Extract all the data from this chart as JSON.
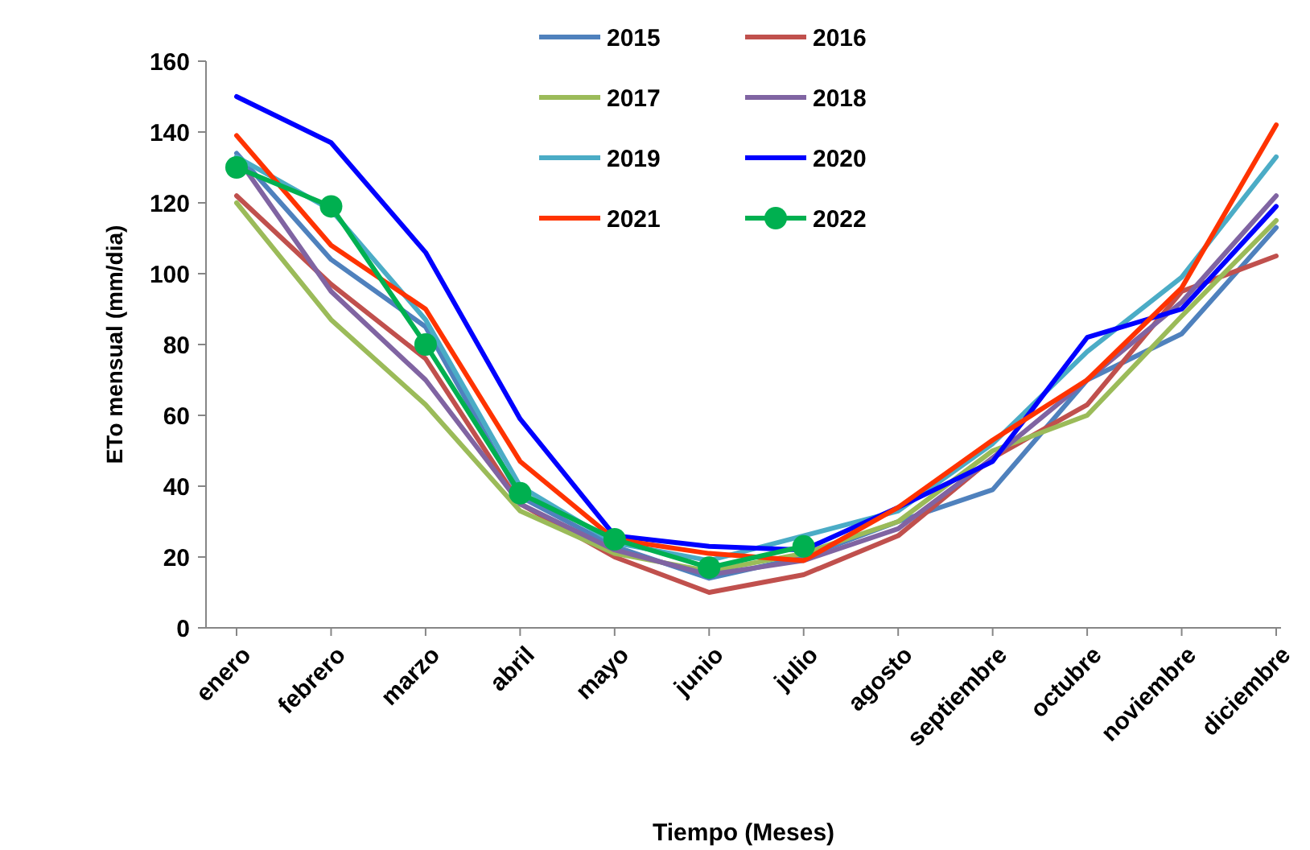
{
  "chart_data": {
    "type": "line",
    "xlabel": "Tiempo (Meses)",
    "ylabel": "ETo mensual (mm/dia)",
    "categories": [
      "enero",
      "febrero",
      "marzo",
      "abril",
      "mayo",
      "junio",
      "julio",
      "agosto",
      "septiembre",
      "octubre",
      "noviembre",
      "diciembre"
    ],
    "ylim": [
      0,
      160
    ],
    "yticks": [
      0,
      20,
      40,
      60,
      80,
      100,
      120,
      140,
      160
    ],
    "grid": false,
    "legend": "top",
    "marker": "none",
    "series": [
      {
        "name": "2015",
        "color": "#4f81bd",
        "values": [
          134,
          104,
          85,
          37,
          23,
          14,
          20,
          30,
          39,
          70,
          83,
          113
        ]
      },
      {
        "name": "2016",
        "color": "#c0504d",
        "values": [
          122,
          97,
          76,
          35,
          20,
          10,
          15,
          26,
          48,
          63,
          95,
          105
        ]
      },
      {
        "name": "2017",
        "color": "#9bbb59",
        "values": [
          120,
          87,
          63,
          33,
          21,
          16,
          21,
          30,
          50,
          60,
          88,
          115
        ]
      },
      {
        "name": "2018",
        "color": "#8064a2",
        "values": [
          133,
          95,
          70,
          35,
          22,
          15,
          19,
          28,
          48,
          70,
          92,
          122
        ]
      },
      {
        "name": "2019",
        "color": "#4bacc6",
        "values": [
          133,
          118,
          87,
          40,
          24,
          19,
          26,
          33,
          52,
          78,
          99,
          133
        ]
      },
      {
        "name": "2020",
        "color": "#0000ff",
        "values": [
          150,
          137,
          106,
          59,
          26,
          23,
          22,
          34,
          47,
          82,
          90,
          119
        ]
      },
      {
        "name": "2021",
        "color": "#ff3300",
        "values": [
          139,
          108,
          90,
          47,
          25,
          21,
          19,
          34,
          53,
          70,
          96,
          142
        ]
      },
      {
        "name": "2022",
        "color": "#00b050",
        "marker": "circle",
        "values": [
          130,
          119,
          80,
          38,
          25,
          17,
          23,
          null,
          null,
          null,
          null,
          null
        ]
      }
    ]
  }
}
